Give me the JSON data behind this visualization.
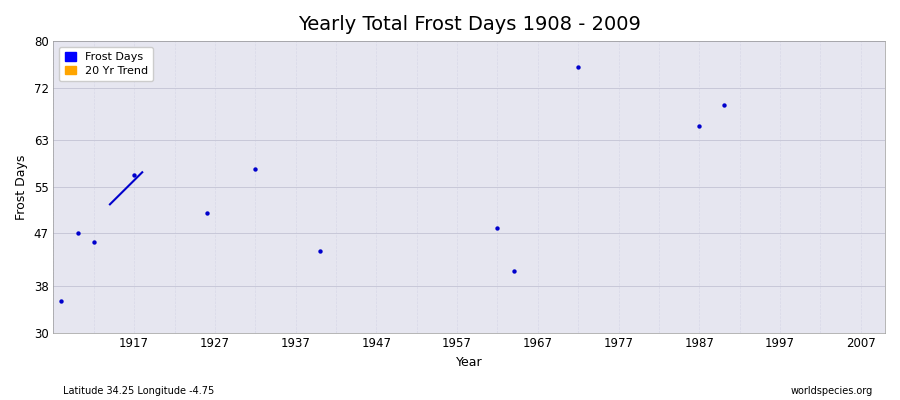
{
  "title": "Yearly Total Frost Days 1908 - 2009",
  "xlabel": "Year",
  "ylabel": "Frost Days",
  "bottom_left": "Latitude 34.25 Longitude -4.75",
  "bottom_right": "worldspecies.org",
  "xlim": [
    1907,
    2010
  ],
  "ylim": [
    30,
    80
  ],
  "yticks": [
    30,
    38,
    47,
    55,
    63,
    72,
    80
  ],
  "xticks": [
    1917,
    1927,
    1937,
    1947,
    1957,
    1967,
    1977,
    1987,
    1997,
    2007
  ],
  "scatter_points": [
    [
      1908,
      35.5
    ],
    [
      1910,
      47.0
    ],
    [
      1912,
      45.5
    ],
    [
      1917,
      57.0
    ],
    [
      1926,
      50.5
    ],
    [
      1932,
      58.0
    ],
    [
      1940,
      44.0
    ],
    [
      1962,
      48.0
    ],
    [
      1964,
      40.5
    ],
    [
      1972,
      75.5
    ],
    [
      1987,
      65.5
    ],
    [
      1990,
      69.0
    ]
  ],
  "trend_line": [
    [
      1914,
      52.0
    ],
    [
      1918,
      57.5
    ]
  ],
  "scatter_color": "#0000cc",
  "trend_color": "#0000cc",
  "bg_color": "#e6e6f0",
  "grid_major_color": "#c8c8d8",
  "grid_minor_color": "#d8d8e8",
  "legend_frost_color": "#0000ff",
  "legend_trend_color": "#ffa500",
  "title_fontsize": 14,
  "label_fontsize": 9,
  "tick_fontsize": 8.5
}
